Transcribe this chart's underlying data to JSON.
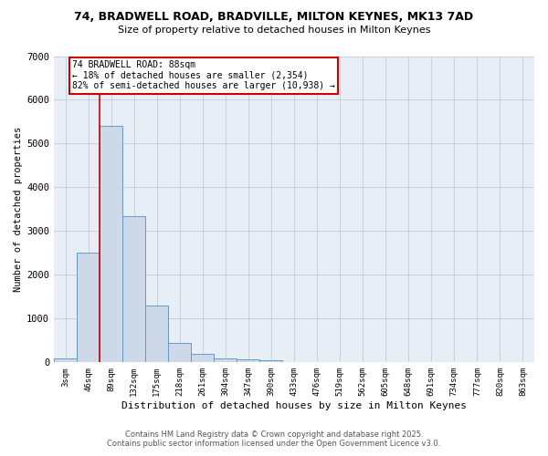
{
  "title_line1": "74, BRADWELL ROAD, BRADVILLE, MILTON KEYNES, MK13 7AD",
  "title_line2": "Size of property relative to detached houses in Milton Keynes",
  "xlabel": "Distribution of detached houses by size in Milton Keynes",
  "ylabel": "Number of detached properties",
  "bar_labels": [
    "3sqm",
    "46sqm",
    "89sqm",
    "132sqm",
    "175sqm",
    "218sqm",
    "261sqm",
    "304sqm",
    "347sqm",
    "390sqm",
    "433sqm",
    "476sqm",
    "519sqm",
    "562sqm",
    "605sqm",
    "648sqm",
    "691sqm",
    "734sqm",
    "777sqm",
    "820sqm",
    "863sqm"
  ],
  "bar_values": [
    100,
    2500,
    5400,
    3350,
    1300,
    450,
    200,
    100,
    75,
    50,
    10,
    0,
    0,
    0,
    0,
    0,
    0,
    0,
    0,
    0,
    0
  ],
  "bar_color": "#cdd8e8",
  "bar_edge_color": "#6699cc",
  "plot_bg_color": "#e8eef5",
  "fig_bg_color": "#ffffff",
  "ylim": [
    0,
    7000
  ],
  "yticks": [
    0,
    1000,
    2000,
    3000,
    4000,
    5000,
    6000,
    7000
  ],
  "red_line_index": 2,
  "annotation_title": "74 BRADWELL ROAD: 88sqm",
  "annotation_line2": "← 18% of detached houses are smaller (2,354)",
  "annotation_line3": "82% of semi-detached houses are larger (10,938) →",
  "annotation_box_color": "#cc0000",
  "footer_line1": "Contains HM Land Registry data © Crown copyright and database right 2025.",
  "footer_line2": "Contains public sector information licensed under the Open Government Licence v3.0.",
  "grid_color": "#c8d0dc"
}
